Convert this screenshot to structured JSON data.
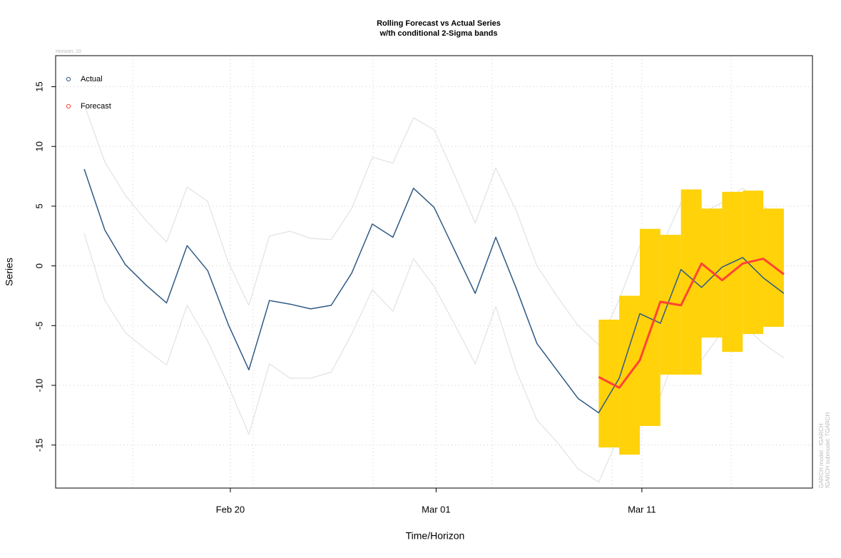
{
  "chart_data": {
    "type": "line",
    "title": "Rolling Forecast vs Actual Series",
    "subtitle": "w/th conditional 2-Sigma bands",
    "note": "Horizon: 10",
    "side_note_1": "GARCH model : fGARCH",
    "side_note_2": "fGARCH submodel: TGARCH",
    "x_label": "Time/Horizon",
    "y_label": "Series",
    "x": [
      1,
      2,
      3,
      4,
      5,
      6,
      7,
      8,
      9,
      10,
      11,
      12,
      13,
      14,
      15,
      16,
      17,
      18,
      19,
      20,
      21,
      22,
      23,
      24,
      25,
      26,
      27,
      28,
      29,
      30,
      31,
      32,
      33,
      34,
      35
    ],
    "series": [
      {
        "name": "Actual",
        "color": "#2f5a84",
        "values": [
          8.1,
          3.0,
          0.1,
          -1.6,
          -3.1,
          1.7,
          -0.4,
          -4.9,
          -8.7,
          -2.9,
          -3.2,
          -3.6,
          -3.3,
          -0.6,
          3.5,
          2.4,
          6.5,
          4.9,
          1.3,
          -2.3,
          2.4,
          -1.9,
          -6.5,
          -8.8,
          -11.1,
          -12.3,
          -9.4,
          -4.0,
          -4.8,
          -0.3,
          -1.8,
          -0.1,
          0.7,
          -1.0,
          -2.3
        ]
      },
      {
        "name": "Forecast",
        "color": "#ff4433",
        "values": [
          null,
          null,
          null,
          null,
          null,
          null,
          null,
          null,
          null,
          null,
          null,
          null,
          null,
          null,
          null,
          null,
          null,
          null,
          null,
          null,
          null,
          null,
          null,
          null,
          null,
          -9.3,
          -10.2,
          -7.9,
          -3.0,
          -3.3,
          0.2,
          -1.2,
          0.2,
          0.6,
          -0.7
        ]
      }
    ],
    "sigma_bands": {
      "color": "#e2e2e2",
      "upper": [
        13.5,
        8.7,
        5.9,
        3.8,
        2.0,
        6.6,
        5.4,
        0.3,
        -3.3,
        2.5,
        2.9,
        2.3,
        2.2,
        4.8,
        9.1,
        8.6,
        12.4,
        11.4,
        7.6,
        3.6,
        8.2,
        4.6,
        0.0,
        -2.6,
        -5.0,
        -6.6,
        -2.8,
        1.7,
        1.4,
        5.3,
        4.4,
        5.3,
        6.5,
        5.0,
        3.8
      ],
      "lower": [
        2.7,
        -2.9,
        -5.6,
        -7.0,
        -8.3,
        -3.3,
        -6.3,
        -10.0,
        -14.1,
        -8.2,
        -9.4,
        -9.4,
        -8.9,
        -5.7,
        -2.0,
        -3.8,
        0.6,
        -1.7,
        -4.9,
        -8.2,
        -3.4,
        -8.8,
        -12.9,
        -14.8,
        -17.0,
        -18.1,
        -14.2,
        -9.4,
        -10.9,
        -6.1,
        -7.9,
        -5.5,
        -4.9,
        -6.5,
        -7.7
      ]
    },
    "forecast_bands": {
      "color": "#ffd20a",
      "x": [
        26,
        27,
        28,
        29,
        30,
        31,
        32,
        33,
        34
      ],
      "upper": [
        -4.5,
        -2.5,
        3.1,
        2.6,
        6.4,
        4.8,
        6.2,
        6.3,
        4.8
      ],
      "lower": [
        -15.2,
        -15.8,
        -13.4,
        -9.1,
        -9.1,
        -6.0,
        -7.2,
        -5.7,
        -5.1
      ]
    },
    "xlim": [
      -0.39,
      36.39
    ],
    "ylim": [
      -18.6,
      17.6
    ],
    "xticks": [
      {
        "value": 8.1,
        "label": "Feb 20"
      },
      {
        "value": 18.1,
        "label": "Mar 01"
      },
      {
        "value": 28.1,
        "label": "Mar 11"
      }
    ],
    "xgrid": [
      3.36,
      8.1,
      9.21,
      15.04,
      18.1,
      20.83,
      26.65,
      28.1,
      32.44
    ],
    "yticks": [
      -15,
      -10,
      -5,
      0,
      5,
      10,
      15
    ],
    "grid": true,
    "legend": "top-left"
  }
}
